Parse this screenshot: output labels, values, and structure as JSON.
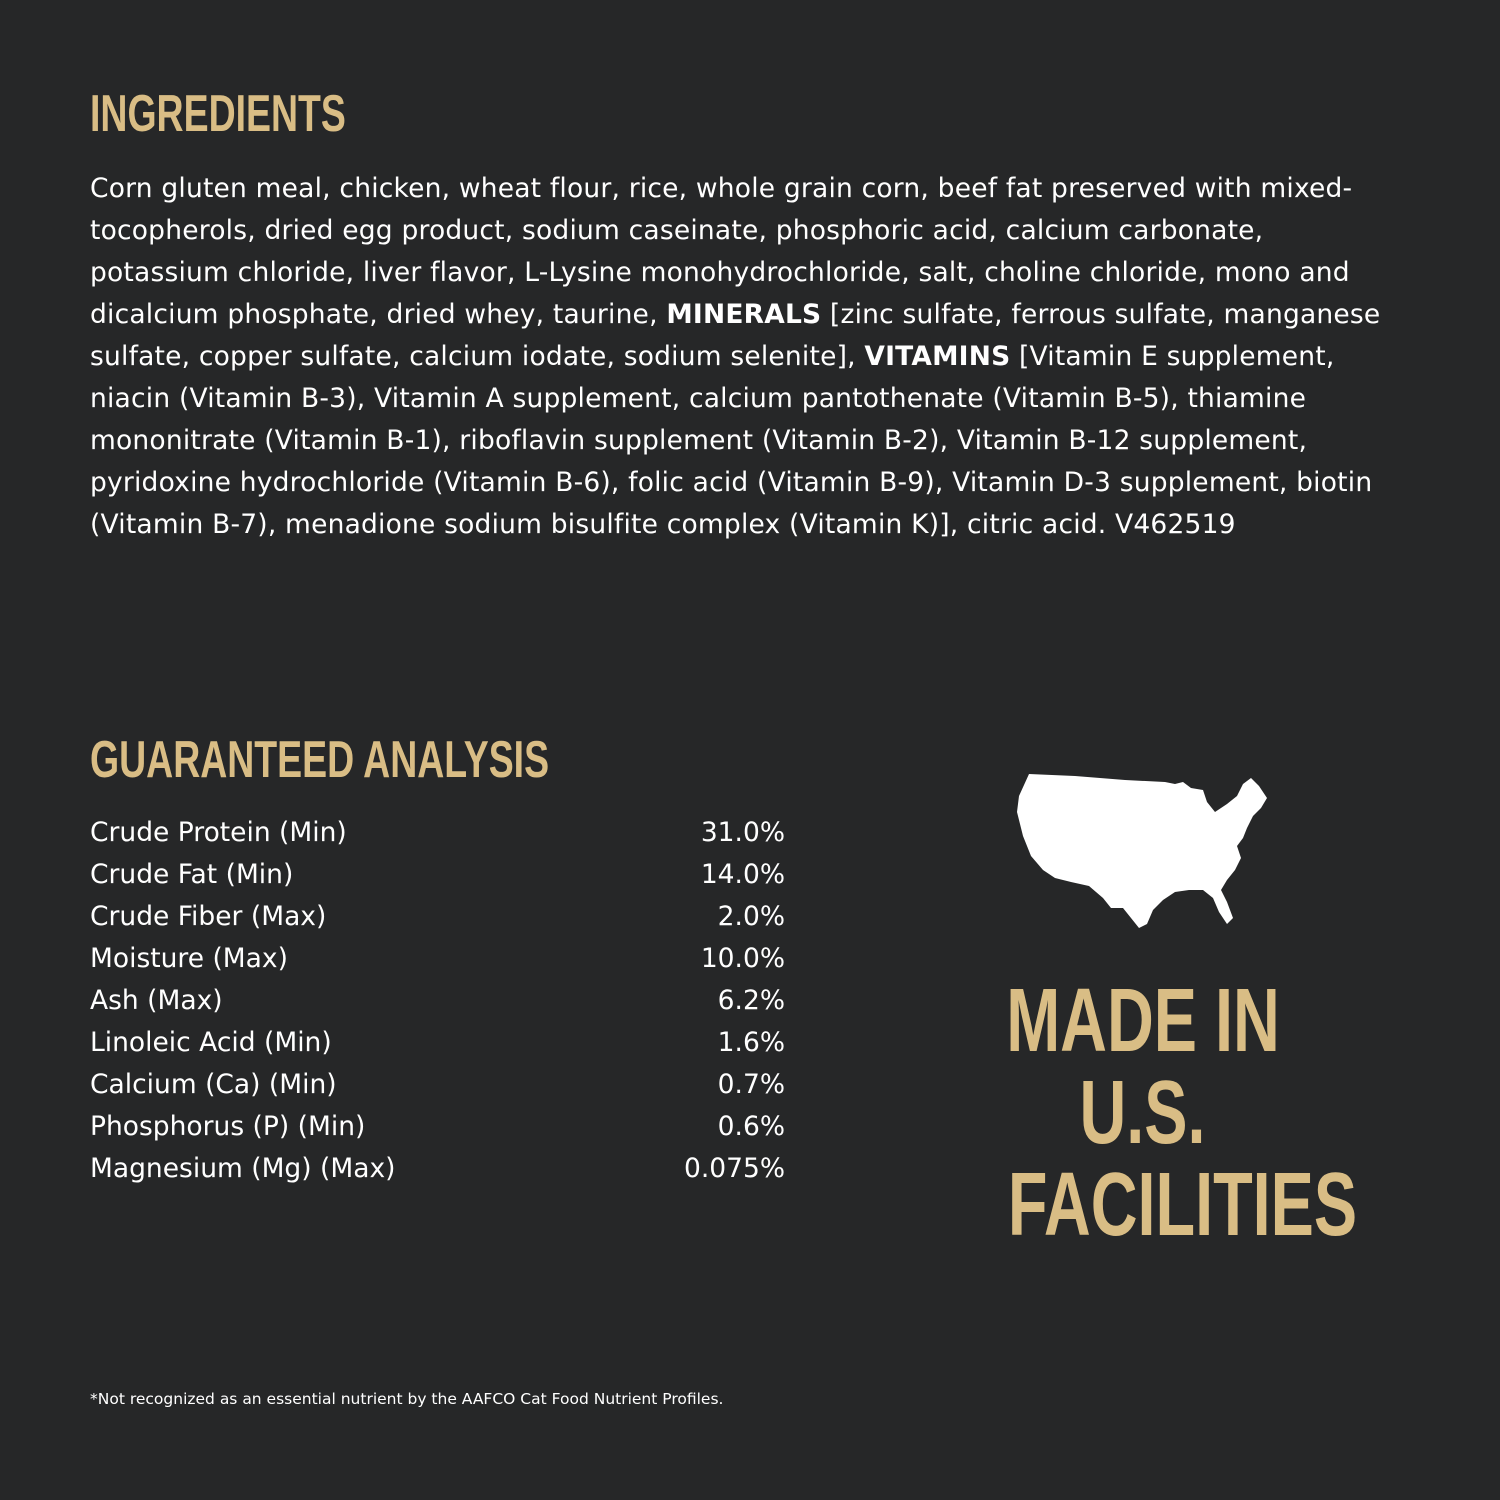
{
  "ingredients": {
    "title": "INGREDIENTS",
    "text_1": "Corn gluten meal, chicken, wheat flour, rice, whole grain corn, beef fat preserved with mixed-tocopherols, dried egg product, sodium caseinate, phosphoric acid, calcium carbonate, potassium chloride, liver flavor, L-Lysine monohydrochloride, salt, choline chloride, mono and dicalcium phosphate, dried whey, taurine, ",
    "minerals_label": "MINERALS",
    "text_2": " [zinc sulfate, ferrous sulfate, manganese sulfate, copper sulfate, calcium iodate, sodium selenite], ",
    "vitamins_label": "VITAMINS",
    "text_3": " [Vitamin E supplement, niacin (Vitamin B-3), Vitamin A supplement, calcium pantothenate (Vitamin B-5), thiamine mononitrate (Vitamin B-1), riboflavin supplement (Vitamin B-2), Vitamin B-12 supplement, pyridoxine hydrochloride (Vitamin B-6), folic acid (Vitamin B-9), Vitamin D-3 supplement, biotin (Vitamin B-7), menadione sodium bisulfite complex (Vitamin K)], citric acid. V462519"
  },
  "analysis": {
    "title": "GUARANTEED ANALYSIS",
    "rows": [
      {
        "label": "Crude Protein (Min)",
        "value": "31.0%"
      },
      {
        "label": "Crude Fat (Min)",
        "value": "14.0%"
      },
      {
        "label": "Crude Fiber (Max)",
        "value": "2.0%"
      },
      {
        "label": "Moisture (Max)",
        "value": "10.0%"
      },
      {
        "label": "Ash (Max)",
        "value": "6.2%"
      },
      {
        "label": "Linoleic Acid (Min)",
        "value": "1.6%"
      },
      {
        "label": "Calcium (Ca) (Min)",
        "value": "0.7%"
      },
      {
        "label": "Phosphorus (P) (Min)",
        "value": "0.6%"
      },
      {
        "label": "Magnesium (Mg) (Max)",
        "value": "0.075%"
      }
    ]
  },
  "badge": {
    "icon": "usa-map-icon",
    "line_1": "MADE IN",
    "line_2": "U.S.",
    "line_3": "FACILITIES"
  },
  "footnote": "*Not recognized as an essential nutrient by the AAFCO Cat Food Nutrient Profiles.",
  "colors": {
    "background": "#262728",
    "accent": "#d9bd85",
    "text": "#ffffff"
  }
}
